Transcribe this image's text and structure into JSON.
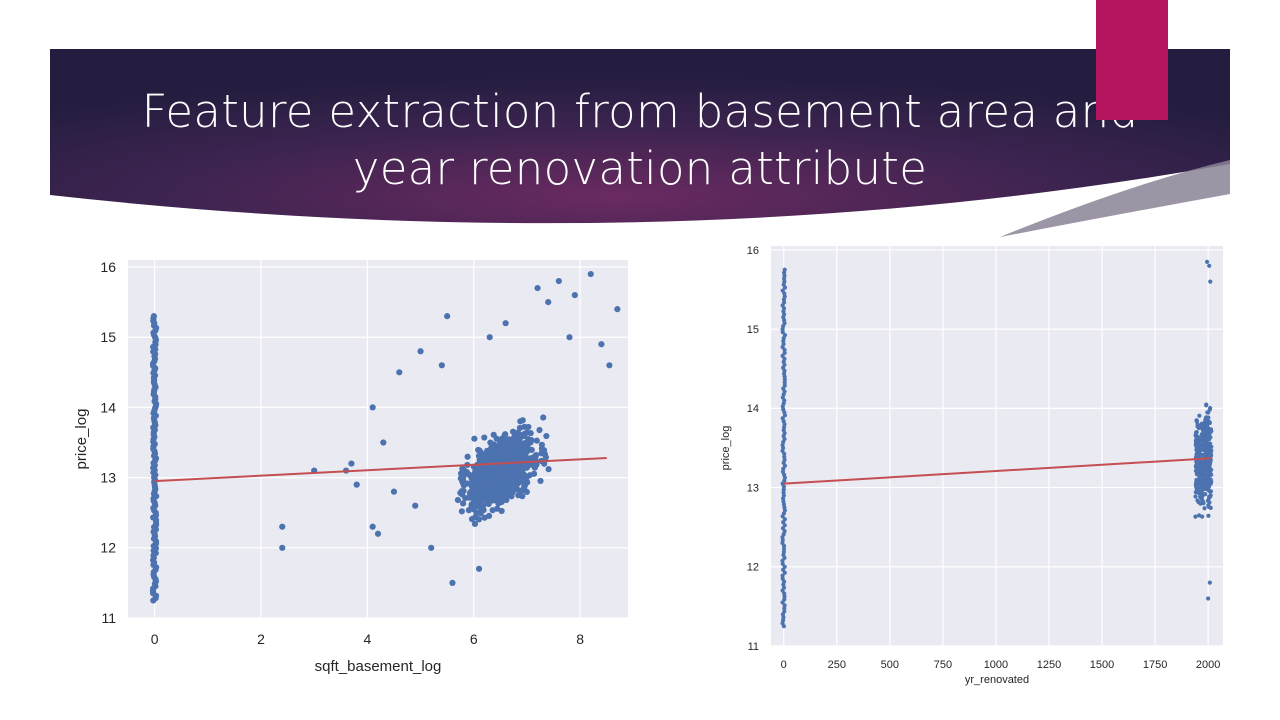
{
  "slide": {
    "title_line1": "Feature extraction from basement area and",
    "title_line2": "year renovation attribute",
    "accent_color": "#b5145e"
  },
  "chart_data": [
    {
      "type": "scatter",
      "title": "",
      "xlabel": "sqft_basement_log",
      "ylabel": "price_log",
      "xlim": [
        -0.5,
        8.9
      ],
      "ylim": [
        11,
        16.1
      ],
      "xticks": [
        0,
        2,
        4,
        6,
        8
      ],
      "yticks": [
        11,
        12,
        13,
        14,
        15,
        16
      ],
      "grid": true,
      "marker_color": "#4c72b0",
      "fit_color": "#c44e52",
      "points_zero_column": {
        "x": 0,
        "y_min": 11.25,
        "y_max": 15.3
      },
      "points": [
        [
          2.4,
          12.3
        ],
        [
          2.4,
          12.0
        ],
        [
          3.0,
          13.1
        ],
        [
          3.6,
          13.1
        ],
        [
          3.7,
          13.2
        ],
        [
          3.8,
          12.9
        ],
        [
          4.1,
          14.0
        ],
        [
          4.1,
          12.3
        ],
        [
          4.2,
          12.2
        ],
        [
          4.3,
          13.5
        ],
        [
          4.5,
          12.8
        ],
        [
          4.6,
          14.5
        ],
        [
          5.5,
          15.3
        ],
        [
          5.6,
          11.5
        ],
        [
          6.6,
          15.2
        ],
        [
          7.2,
          15.7
        ],
        [
          7.6,
          15.8
        ],
        [
          7.9,
          15.6
        ],
        [
          8.2,
          15.9
        ],
        [
          8.4,
          14.9
        ],
        [
          8.55,
          14.6
        ],
        [
          8.7,
          15.4
        ],
        [
          7.8,
          15.0
        ],
        [
          5.0,
          14.8
        ],
        [
          5.2,
          12.0
        ],
        [
          6.1,
          11.7
        ],
        [
          4.9,
          12.6
        ],
        [
          5.4,
          14.6
        ],
        [
          6.3,
          15.0
        ],
        [
          7.4,
          15.5
        ]
      ],
      "dense_cloud": {
        "x_center": 6.5,
        "y_center": 13.1,
        "x_range": [
          4.4,
          7.7
        ],
        "y_range": [
          11.9,
          14.9
        ]
      },
      "fit_line": {
        "x": [
          0,
          8.5
        ],
        "y": [
          12.95,
          13.28
        ]
      }
    },
    {
      "type": "scatter",
      "title": "",
      "xlabel": "yr_renovated",
      "ylabel": "price_log",
      "xlim": [
        -60,
        2070
      ],
      "ylim": [
        11,
        16.05
      ],
      "xticks": [
        0,
        250,
        500,
        750,
        1000,
        1250,
        1500,
        1750,
        2000
      ],
      "yticks": [
        11,
        12,
        13,
        14,
        15,
        16
      ],
      "grid": true,
      "marker_color": "#4c72b0",
      "fit_color": "#c44e52",
      "points_zero_column": {
        "x": 0,
        "y_min": 11.25,
        "y_max": 15.75
      },
      "points_right_column": {
        "x_range": [
          1940,
          2015
        ],
        "y_min": 11.6,
        "y_max": 15.85
      },
      "fit_line": {
        "x": [
          0,
          2015
        ],
        "y": [
          13.05,
          13.37
        ]
      }
    }
  ]
}
